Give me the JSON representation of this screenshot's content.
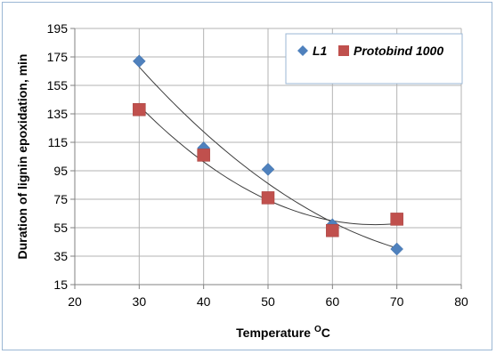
{
  "chart_data": {
    "type": "scatter",
    "title": "",
    "xlabel": "Temperature",
    "xlabel_superscript": "O",
    "xlabel_suffix": "C",
    "ylabel": "Duration of lignin epoxidation, min",
    "xlim": [
      20,
      80
    ],
    "ylim": [
      15,
      195
    ],
    "x_ticks": [
      20,
      30,
      40,
      50,
      60,
      70,
      80
    ],
    "y_ticks": [
      15,
      35,
      55,
      75,
      95,
      115,
      135,
      155,
      175,
      195
    ],
    "grid": true,
    "legend_position": "top-right",
    "series": [
      {
        "name": "L1",
        "marker": "diamond",
        "color": "#4f81bd",
        "x": [
          30,
          40,
          50,
          60,
          70
        ],
        "y": [
          172,
          111,
          96,
          57,
          40
        ],
        "trendline": "polynomial"
      },
      {
        "name": "Protobind 1000",
        "marker": "square",
        "color": "#c0504d",
        "x": [
          30,
          40,
          50,
          60,
          70
        ],
        "y": [
          138,
          106,
          76,
          53,
          61
        ],
        "trendline": "polynomial"
      }
    ]
  }
}
